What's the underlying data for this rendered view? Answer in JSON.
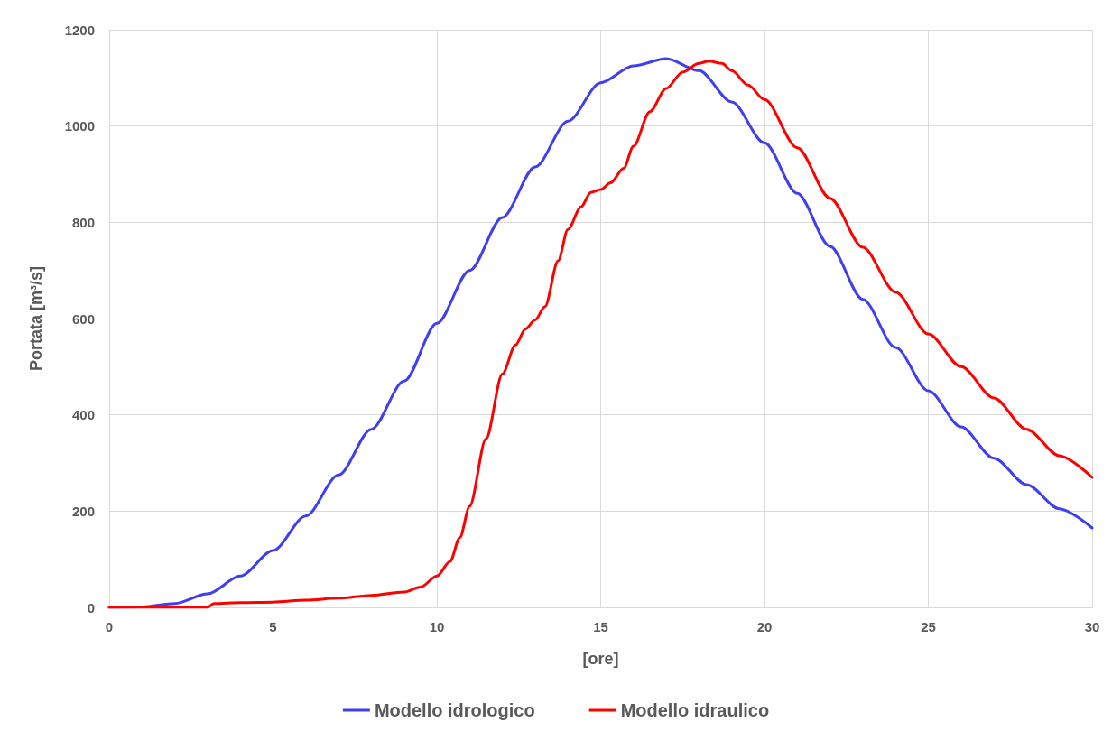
{
  "chart_data": {
    "type": "line",
    "xlabel": "[ore]",
    "ylabel": "Portata [m³/s]",
    "xlim": [
      0,
      30
    ],
    "xticks": [
      0,
      5,
      10,
      15,
      20,
      25,
      30
    ],
    "ylim": [
      0,
      1200
    ],
    "yticks": [
      0,
      200,
      400,
      600,
      800,
      1000,
      1200
    ],
    "grid": true,
    "legend": "bottom",
    "marker": "none",
    "line_style": "solid",
    "series": [
      {
        "name": "Modello idrologico",
        "color": "#3f3ff0",
        "x": [
          0,
          1,
          2,
          3,
          4,
          5,
          6,
          7,
          8,
          9,
          10,
          11,
          12,
          13,
          14,
          15,
          16,
          17,
          18,
          19,
          20,
          21,
          22,
          23,
          24,
          25,
          26,
          27,
          28,
          29,
          30
        ],
        "values": [
          0,
          1,
          8,
          28,
          65,
          118,
          190,
          275,
          370,
          470,
          590,
          700,
          810,
          915,
          1010,
          1090,
          1125,
          1140,
          1115,
          1050,
          965,
          860,
          750,
          640,
          540,
          450,
          375,
          310,
          255,
          205,
          165
        ]
      },
      {
        "name": "Modello idraulico",
        "color": "#ff0000",
        "x": [
          0,
          1,
          2,
          3,
          3.2,
          4,
          5,
          6,
          7,
          8,
          9,
          9.5,
          10,
          10.4,
          10.7,
          11,
          11.5,
          12,
          12.4,
          12.7,
          13,
          13.3,
          13.7,
          14,
          14.4,
          14.7,
          15,
          15.3,
          15.7,
          16,
          16.5,
          17,
          17.5,
          18,
          18.3,
          18.7,
          19,
          19.5,
          20,
          21,
          22,
          23,
          24,
          25,
          26,
          27,
          28,
          29,
          30
        ],
        "values": [
          0,
          0,
          0,
          0,
          8,
          10,
          11,
          15,
          19,
          25,
          32,
          42,
          65,
          95,
          145,
          210,
          350,
          485,
          545,
          578,
          597,
          625,
          720,
          785,
          832,
          862,
          868,
          882,
          912,
          958,
          1030,
          1078,
          1112,
          1130,
          1135,
          1130,
          1115,
          1085,
          1055,
          955,
          850,
          748,
          655,
          568,
          500,
          435,
          370,
          315,
          270
        ]
      }
    ]
  }
}
